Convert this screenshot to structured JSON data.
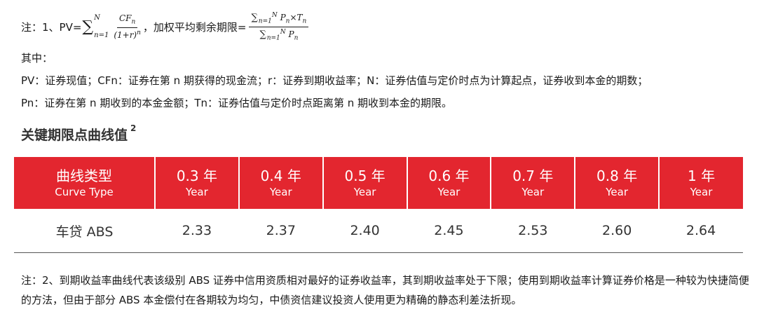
{
  "note1": {
    "prefix": "注：1、PV=",
    "sum_sub": "n=1",
    "sum_sup": "N",
    "frac1_num": "CF",
    "frac1_num_sub": "n",
    "frac1_den": "(1+r)",
    "frac1_den_sup": "n",
    "mid_text": "，加权平均剩余期限=",
    "frac2_num_a": "P",
    "frac2_num_times": "×",
    "frac2_num_b": "T",
    "var_sub": "n",
    "frac2_den": "P"
  },
  "lines": {
    "among": "其中：",
    "def1": "PV：证券现值；CFn：证券在第 n 期获得的现金流；r：证券到期收益率；N：证券估值与定价时点为计算起点，证券收到本金的期数；",
    "def2": "Pn：证券在第 n 期收到的本金金额；Tn：证券估值与定价时点距离第 n 期收到本金的期限。"
  },
  "section": {
    "title": "关键期限点曲线值",
    "footnote": "2"
  },
  "table": {
    "headers": [
      {
        "cn": "曲线类型",
        "en": "Curve Type"
      },
      {
        "cn": "0.3 年",
        "en": "Year"
      },
      {
        "cn": "0.4 年",
        "en": "Year"
      },
      {
        "cn": "0.5 年",
        "en": "Year"
      },
      {
        "cn": "0.6 年",
        "en": "Year"
      },
      {
        "cn": "0.7 年",
        "en": "Year"
      },
      {
        "cn": "0.8 年",
        "en": "Year"
      },
      {
        "cn": "1 年",
        "en": "Year"
      }
    ],
    "row": {
      "label": "车贷 ABS",
      "values": [
        "2.33",
        "2.37",
        "2.40",
        "2.45",
        "2.53",
        "2.60",
        "2.64"
      ]
    }
  },
  "note2": "注：2、到期收益率曲线代表该级别 ABS 证券中信用资质相对最好的证券收益率，其到期收益率处于下限；使用到期收益率计算证券价格是一种较为快捷简便的方法，但由于部分 ABS 本金偿付在各期较为均匀，中债资信建议投资人使用更为精确的静态利差法折现。",
  "colors": {
    "header_bg": "#e3262f",
    "header_text": "#ffffff"
  }
}
